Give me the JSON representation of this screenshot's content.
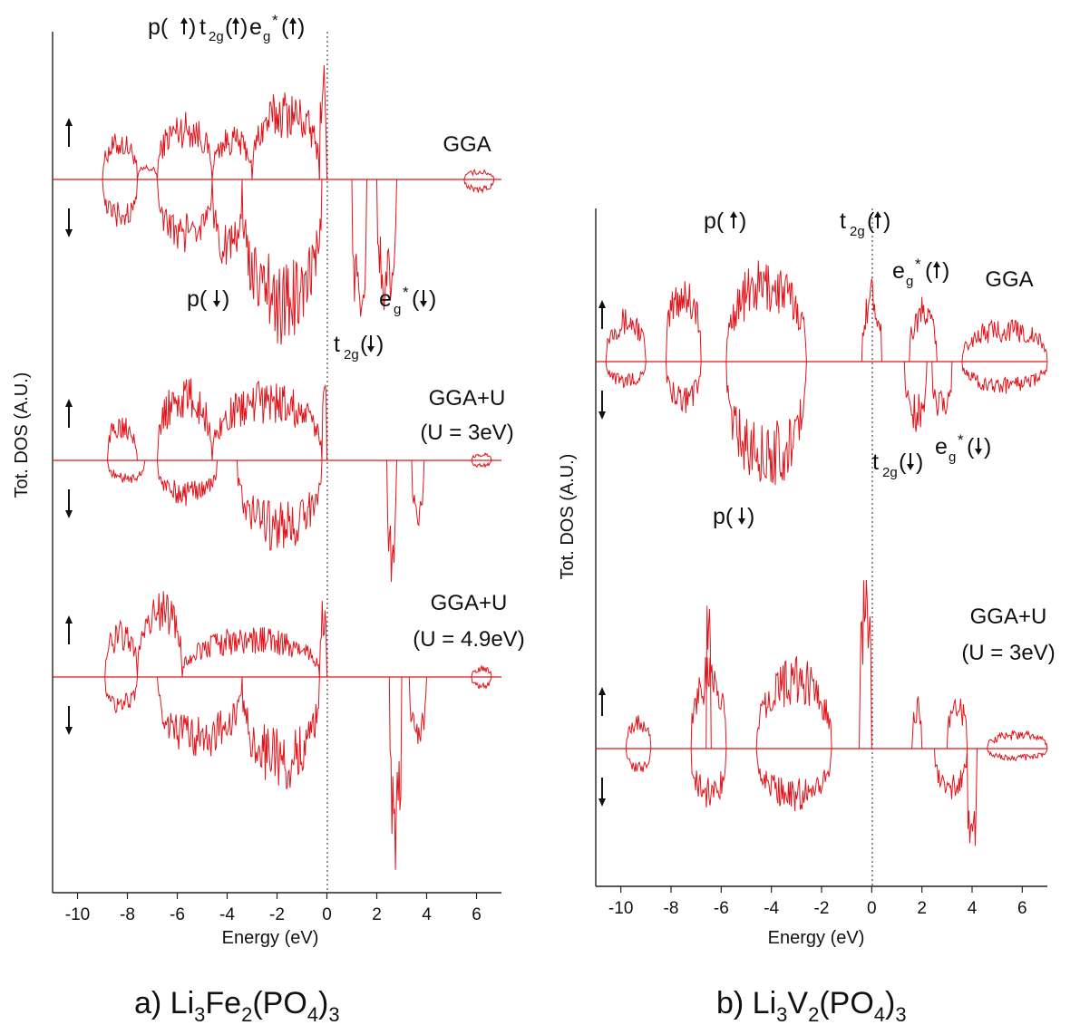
{
  "colors": {
    "curve": "#e0141b",
    "axis": "#222222",
    "text": "#111111"
  },
  "chart_data": [
    {
      "type": "line",
      "xlabel": "Energy (eV)",
      "ylabel": "Tot. DOS (A.U.)",
      "xlim": [
        -11,
        7
      ],
      "xticks": [
        "-10",
        "-8",
        "-6",
        "-4",
        "-2",
        "0",
        "2",
        "4",
        "6"
      ],
      "caption": "a) Li3Fe2(PO4)3",
      "fermi_level": 0,
      "panels": [
        {
          "label_lines": [
            "GGA"
          ],
          "up_arrow_icon": "up-arrow-icon",
          "down_arrow_icon": "down-arrow-icon",
          "up_segments": [
            {
              "x0": -9.0,
              "x1": -7.6,
              "amp": 0.38
            },
            {
              "x0": -7.6,
              "x1": -6.8,
              "amp": 0.12
            },
            {
              "x0": -6.8,
              "x1": -4.6,
              "amp": 0.55
            },
            {
              "x0": -4.6,
              "x1": -3.0,
              "amp": 0.42
            },
            {
              "x0": -3.0,
              "x1": -0.3,
              "amp": 0.72
            },
            {
              "x0": -0.3,
              "x1": 0.0,
              "amp": 1.0
            },
            {
              "x0": 5.5,
              "x1": 6.7,
              "amp": 0.08
            }
          ],
          "down_segments": [
            {
              "x0": -9.0,
              "x1": -7.6,
              "amp": 0.3
            },
            {
              "x0": -6.8,
              "x1": -4.6,
              "amp": 0.45
            },
            {
              "x0": -4.6,
              "x1": -3.4,
              "amp": 0.55
            },
            {
              "x0": -3.4,
              "x1": -0.2,
              "amp": 1.0
            },
            {
              "x0": 1.0,
              "x1": 1.6,
              "amp": 1.0
            },
            {
              "x0": 2.0,
              "x1": 2.8,
              "amp": 0.85
            },
            {
              "x0": 5.5,
              "x1": 6.7,
              "amp": 0.08
            }
          ],
          "annotations": [
            {
              "text": "p(",
              "sub": "",
              "sup": "",
              "spin": "up",
              "x": -9.3,
              "row": "top"
            },
            {
              "text": "t",
              "sub": "2g",
              "sup": "",
              "spin": "up",
              "x": -7.2,
              "row": "top"
            },
            {
              "text": "e",
              "sub": "g",
              "sup": "*",
              "spin": "up",
              "x": -4.0,
              "row": "top"
            },
            {
              "text": "p",
              "sub": "",
              "sup": "",
              "spin": "down",
              "x": -4.7,
              "row": "low1"
            },
            {
              "text": "e",
              "sub": "g",
              "sup": "*",
              "spin": "down",
              "x": 2.3,
              "row": "low1"
            },
            {
              "text": "t",
              "sub": "2g",
              "sup": "",
              "spin": "down",
              "x": 0.4,
              "row": "low2"
            }
          ]
        },
        {
          "label_lines": [
            "GGA+U",
            "(U = 3eV)"
          ],
          "up_arrow_icon": "up-arrow-icon",
          "down_arrow_icon": "down-arrow-icon",
          "up_segments": [
            {
              "x0": -8.8,
              "x1": -7.6,
              "amp": 0.5
            },
            {
              "x0": -6.8,
              "x1": -4.6,
              "amp": 0.85
            },
            {
              "x0": -4.6,
              "x1": -0.2,
              "amp": 0.8
            },
            {
              "x0": -0.2,
              "x1": 0.0,
              "amp": 1.0
            },
            {
              "x0": 5.8,
              "x1": 6.6,
              "amp": 0.08
            }
          ],
          "down_segments": [
            {
              "x0": -8.8,
              "x1": -7.3,
              "amp": 0.2
            },
            {
              "x0": -6.8,
              "x1": -4.4,
              "amp": 0.38
            },
            {
              "x0": -3.6,
              "x1": -0.2,
              "amp": 0.75
            },
            {
              "x0": 2.4,
              "x1": 2.8,
              "amp": 1.0
            },
            {
              "x0": 3.4,
              "x1": 3.9,
              "amp": 0.6
            },
            {
              "x0": 5.8,
              "x1": 6.6,
              "amp": 0.06
            }
          ],
          "annotations": []
        },
        {
          "label_lines": [
            "GGA+U",
            "(U = 4.9eV)"
          ],
          "up_arrow_icon": "up-arrow-icon",
          "down_arrow_icon": "down-arrow-icon",
          "up_segments": [
            {
              "x0": -8.9,
              "x1": -7.6,
              "amp": 0.5
            },
            {
              "x0": -7.6,
              "x1": -5.8,
              "amp": 0.8
            },
            {
              "x0": -5.8,
              "x1": -0.3,
              "amp": 0.45
            },
            {
              "x0": -0.3,
              "x1": 0.0,
              "amp": 0.75
            },
            {
              "x0": 5.8,
              "x1": 6.6,
              "amp": 0.1
            }
          ],
          "down_segments": [
            {
              "x0": -8.9,
              "x1": -7.6,
              "amp": 0.18
            },
            {
              "x0": -6.8,
              "x1": -3.4,
              "amp": 0.4
            },
            {
              "x0": -3.4,
              "x1": -0.3,
              "amp": 0.55
            },
            {
              "x0": 2.5,
              "x1": 3.0,
              "amp": 1.0
            },
            {
              "x0": 3.3,
              "x1": 4.0,
              "amp": 0.35
            },
            {
              "x0": 5.8,
              "x1": 6.6,
              "amp": 0.06
            }
          ],
          "annotations": []
        }
      ]
    },
    {
      "type": "line",
      "xlabel": "Energy (eV)",
      "ylabel": "Tot. DOS (A.U.)",
      "xlim": [
        -11,
        7
      ],
      "xticks": [
        "-10",
        "-8",
        "-6",
        "-4",
        "-2",
        "0",
        "2",
        "4",
        "6"
      ],
      "caption": "b) Li3V2(PO4)3",
      "fermi_level": 0,
      "panels": [
        {
          "label_lines": [
            "GGA"
          ],
          "up_arrow_icon": "up-arrow-icon",
          "down_arrow_icon": "down-arrow-icon",
          "up_segments": [
            {
              "x0": -10.6,
              "x1": -9.0,
              "amp": 0.5
            },
            {
              "x0": -8.2,
              "x1": -6.8,
              "amp": 0.85
            },
            {
              "x0": -5.8,
              "x1": -2.6,
              "amp": 0.95
            },
            {
              "x0": -0.4,
              "x1": 0.4,
              "amp": 0.8
            },
            {
              "x0": 1.5,
              "x1": 2.6,
              "amp": 0.6
            },
            {
              "x0": 3.6,
              "x1": 7.0,
              "amp": 0.4
            }
          ],
          "down_segments": [
            {
              "x0": -10.6,
              "x1": -9.0,
              "amp": 0.2
            },
            {
              "x0": -8.2,
              "x1": -6.8,
              "amp": 0.4
            },
            {
              "x0": -5.8,
              "x1": -2.6,
              "amp": 1.0
            },
            {
              "x0": 1.3,
              "x1": 2.2,
              "amp": 0.55
            },
            {
              "x0": 2.4,
              "x1": 3.2,
              "amp": 0.5
            },
            {
              "x0": 3.6,
              "x1": 7.0,
              "amp": 0.25
            }
          ],
          "annotations": [
            {
              "text": "p",
              "sub": "",
              "sup": "",
              "spin": "up",
              "x": -6.5,
              "row": "top"
            },
            {
              "text": "t",
              "sub": "2g",
              "sup": "",
              "spin": "up",
              "x": -0.6,
              "row": "top"
            },
            {
              "text": "e",
              "sub": "g",
              "sup": "*",
              "spin": "up",
              "x": 1.1,
              "row": "mid"
            },
            {
              "text": "p",
              "sub": "",
              "sup": "",
              "spin": "down",
              "x": -6.0,
              "row": "low"
            },
            {
              "text": "t",
              "sub": "2g",
              "sup": "",
              "spin": "down",
              "x": 0.1,
              "row": "lowmid"
            },
            {
              "text": "e",
              "sub": "g",
              "sup": "*",
              "spin": "down",
              "x": 2.6,
              "row": "lowmid"
            }
          ]
        },
        {
          "label_lines": [
            "GGA+U",
            "(U = 3eV)"
          ],
          "up_arrow_icon": "up-arrow-icon",
          "down_arrow_icon": "down-arrow-icon",
          "up_segments": [
            {
              "x0": -9.8,
              "x1": -8.8,
              "amp": 0.2
            },
            {
              "x0": -7.2,
              "x1": -5.8,
              "amp": 0.5
            },
            {
              "x0": -6.6,
              "x1": -6.4,
              "amp": 1.0
            },
            {
              "x0": -4.6,
              "x1": -1.6,
              "amp": 0.5
            },
            {
              "x0": -0.5,
              "x1": 0.0,
              "amp": 1.0
            },
            {
              "x0": 1.6,
              "x1": 2.0,
              "amp": 0.3
            },
            {
              "x0": 3.0,
              "x1": 3.8,
              "amp": 0.3
            },
            {
              "x0": 4.6,
              "x1": 7.0,
              "amp": 0.1
            }
          ],
          "down_segments": [
            {
              "x0": -9.8,
              "x1": -8.8,
              "amp": 0.2
            },
            {
              "x0": -7.2,
              "x1": -5.8,
              "amp": 0.5
            },
            {
              "x0": -4.6,
              "x1": -1.6,
              "amp": 0.5
            },
            {
              "x0": 2.5,
              "x1": 3.8,
              "amp": 0.4
            },
            {
              "x0": 3.8,
              "x1": 4.2,
              "amp": 1.0
            },
            {
              "x0": 4.6,
              "x1": 7.0,
              "amp": 0.1
            }
          ],
          "annotations": []
        }
      ]
    }
  ],
  "captions": {
    "a_prefix": "a) Li",
    "a_s1": "3",
    "a_mid1": "Fe",
    "a_s2": "2",
    "a_mid2": "(PO",
    "a_s3": "4",
    "a_mid3": ")",
    "a_s4": "3",
    "b_prefix": "b) Li",
    "b_s1": "3",
    "b_mid1": "V",
    "b_s2": "2",
    "b_mid2": "(PO",
    "b_s3": "4",
    "b_mid3": ")",
    "b_s4": "3"
  }
}
